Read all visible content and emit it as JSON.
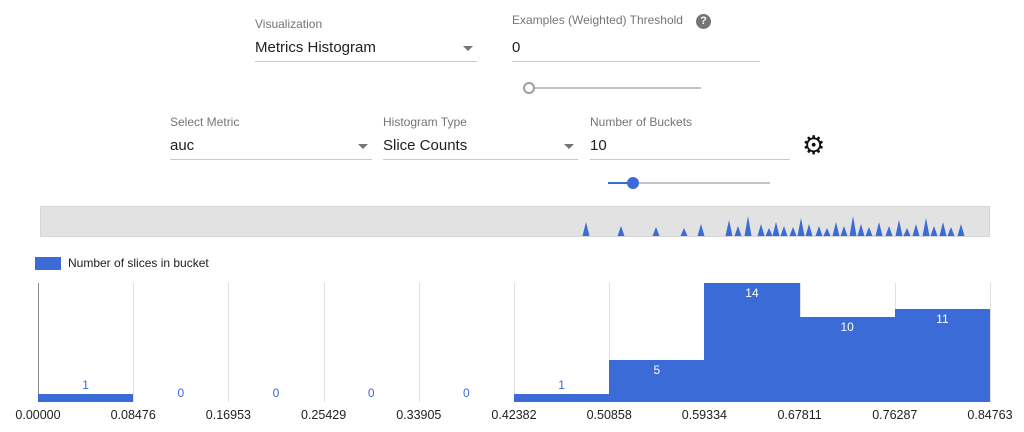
{
  "controls": {
    "visualization": {
      "label": "Visualization",
      "value": "Metrics Histogram"
    },
    "threshold": {
      "label": "Examples (Weighted) Threshold",
      "value": "0"
    },
    "select_metric": {
      "label": "Select Metric",
      "value": "auc"
    },
    "histogram_type": {
      "label": "Histogram Type",
      "value": "Slice Counts"
    },
    "num_buckets": {
      "label": "Number of Buckets",
      "value": "10"
    }
  },
  "icons": {
    "help": "?",
    "gear": "⚙"
  },
  "legend": {
    "label": "Number of slices in bucket",
    "color": "#3b6bd6"
  },
  "chart_data": {
    "type": "bar",
    "title": "Number of slices in bucket",
    "x_tick_labels": [
      "0.00000",
      "0.08476",
      "0.16953",
      "0.25429",
      "0.33905",
      "0.42382",
      "0.50858",
      "0.59334",
      "0.67811",
      "0.76287",
      "0.84763"
    ],
    "values": [
      1,
      0,
      0,
      0,
      0,
      1,
      5,
      14,
      10,
      11
    ],
    "ylim": [
      0,
      14
    ],
    "grid": true,
    "legend_position": "top-left",
    "bar_color": "#3b6bd6",
    "minimap_spikes": [
      [
        545,
        14
      ],
      [
        580,
        10
      ],
      [
        615,
        9
      ],
      [
        643,
        8
      ],
      [
        660,
        12
      ],
      [
        688,
        16
      ],
      [
        697,
        10
      ],
      [
        707,
        20
      ],
      [
        720,
        12
      ],
      [
        728,
        8
      ],
      [
        735,
        14
      ],
      [
        743,
        10
      ],
      [
        752,
        9
      ],
      [
        760,
        18
      ],
      [
        768,
        12
      ],
      [
        778,
        10
      ],
      [
        786,
        8
      ],
      [
        795,
        14
      ],
      [
        803,
        10
      ],
      [
        812,
        20
      ],
      [
        820,
        12
      ],
      [
        828,
        9
      ],
      [
        838,
        14
      ],
      [
        848,
        10
      ],
      [
        858,
        16
      ],
      [
        866,
        8
      ],
      [
        875,
        12
      ],
      [
        885,
        18
      ],
      [
        893,
        10
      ],
      [
        902,
        14
      ],
      [
        910,
        9
      ],
      [
        920,
        12
      ]
    ]
  }
}
